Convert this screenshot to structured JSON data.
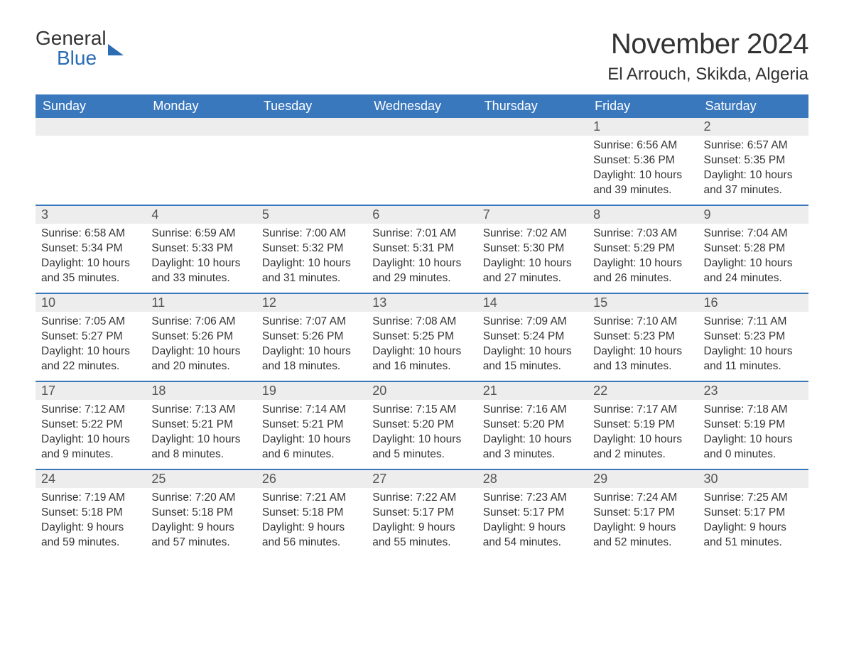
{
  "brand": {
    "general": "General",
    "blue": "Blue"
  },
  "title": "November 2024",
  "location": "El Arrouch, Skikda, Algeria",
  "colors": {
    "header_bg": "#3a78bd",
    "header_text": "#ffffff",
    "date_bar_bg": "#ededed",
    "date_text": "#555555",
    "body_text": "#333333",
    "brand_blue": "#2a6db5",
    "row_border": "#3a78bd",
    "page_bg": "#ffffff"
  },
  "day_names": [
    "Sunday",
    "Monday",
    "Tuesday",
    "Wednesday",
    "Thursday",
    "Friday",
    "Saturday"
  ],
  "weeks": [
    [
      {
        "date": "",
        "sunrise": "",
        "sunset": "",
        "daylight": ""
      },
      {
        "date": "",
        "sunrise": "",
        "sunset": "",
        "daylight": ""
      },
      {
        "date": "",
        "sunrise": "",
        "sunset": "",
        "daylight": ""
      },
      {
        "date": "",
        "sunrise": "",
        "sunset": "",
        "daylight": ""
      },
      {
        "date": "",
        "sunrise": "",
        "sunset": "",
        "daylight": ""
      },
      {
        "date": "1",
        "sunrise": "Sunrise: 6:56 AM",
        "sunset": "Sunset: 5:36 PM",
        "daylight": "Daylight: 10 hours and 39 minutes."
      },
      {
        "date": "2",
        "sunrise": "Sunrise: 6:57 AM",
        "sunset": "Sunset: 5:35 PM",
        "daylight": "Daylight: 10 hours and 37 minutes."
      }
    ],
    [
      {
        "date": "3",
        "sunrise": "Sunrise: 6:58 AM",
        "sunset": "Sunset: 5:34 PM",
        "daylight": "Daylight: 10 hours and 35 minutes."
      },
      {
        "date": "4",
        "sunrise": "Sunrise: 6:59 AM",
        "sunset": "Sunset: 5:33 PM",
        "daylight": "Daylight: 10 hours and 33 minutes."
      },
      {
        "date": "5",
        "sunrise": "Sunrise: 7:00 AM",
        "sunset": "Sunset: 5:32 PM",
        "daylight": "Daylight: 10 hours and 31 minutes."
      },
      {
        "date": "6",
        "sunrise": "Sunrise: 7:01 AM",
        "sunset": "Sunset: 5:31 PM",
        "daylight": "Daylight: 10 hours and 29 minutes."
      },
      {
        "date": "7",
        "sunrise": "Sunrise: 7:02 AM",
        "sunset": "Sunset: 5:30 PM",
        "daylight": "Daylight: 10 hours and 27 minutes."
      },
      {
        "date": "8",
        "sunrise": "Sunrise: 7:03 AM",
        "sunset": "Sunset: 5:29 PM",
        "daylight": "Daylight: 10 hours and 26 minutes."
      },
      {
        "date": "9",
        "sunrise": "Sunrise: 7:04 AM",
        "sunset": "Sunset: 5:28 PM",
        "daylight": "Daylight: 10 hours and 24 minutes."
      }
    ],
    [
      {
        "date": "10",
        "sunrise": "Sunrise: 7:05 AM",
        "sunset": "Sunset: 5:27 PM",
        "daylight": "Daylight: 10 hours and 22 minutes."
      },
      {
        "date": "11",
        "sunrise": "Sunrise: 7:06 AM",
        "sunset": "Sunset: 5:26 PM",
        "daylight": "Daylight: 10 hours and 20 minutes."
      },
      {
        "date": "12",
        "sunrise": "Sunrise: 7:07 AM",
        "sunset": "Sunset: 5:26 PM",
        "daylight": "Daylight: 10 hours and 18 minutes."
      },
      {
        "date": "13",
        "sunrise": "Sunrise: 7:08 AM",
        "sunset": "Sunset: 5:25 PM",
        "daylight": "Daylight: 10 hours and 16 minutes."
      },
      {
        "date": "14",
        "sunrise": "Sunrise: 7:09 AM",
        "sunset": "Sunset: 5:24 PM",
        "daylight": "Daylight: 10 hours and 15 minutes."
      },
      {
        "date": "15",
        "sunrise": "Sunrise: 7:10 AM",
        "sunset": "Sunset: 5:23 PM",
        "daylight": "Daylight: 10 hours and 13 minutes."
      },
      {
        "date": "16",
        "sunrise": "Sunrise: 7:11 AM",
        "sunset": "Sunset: 5:23 PM",
        "daylight": "Daylight: 10 hours and 11 minutes."
      }
    ],
    [
      {
        "date": "17",
        "sunrise": "Sunrise: 7:12 AM",
        "sunset": "Sunset: 5:22 PM",
        "daylight": "Daylight: 10 hours and 9 minutes."
      },
      {
        "date": "18",
        "sunrise": "Sunrise: 7:13 AM",
        "sunset": "Sunset: 5:21 PM",
        "daylight": "Daylight: 10 hours and 8 minutes."
      },
      {
        "date": "19",
        "sunrise": "Sunrise: 7:14 AM",
        "sunset": "Sunset: 5:21 PM",
        "daylight": "Daylight: 10 hours and 6 minutes."
      },
      {
        "date": "20",
        "sunrise": "Sunrise: 7:15 AM",
        "sunset": "Sunset: 5:20 PM",
        "daylight": "Daylight: 10 hours and 5 minutes."
      },
      {
        "date": "21",
        "sunrise": "Sunrise: 7:16 AM",
        "sunset": "Sunset: 5:20 PM",
        "daylight": "Daylight: 10 hours and 3 minutes."
      },
      {
        "date": "22",
        "sunrise": "Sunrise: 7:17 AM",
        "sunset": "Sunset: 5:19 PM",
        "daylight": "Daylight: 10 hours and 2 minutes."
      },
      {
        "date": "23",
        "sunrise": "Sunrise: 7:18 AM",
        "sunset": "Sunset: 5:19 PM",
        "daylight": "Daylight: 10 hours and 0 minutes."
      }
    ],
    [
      {
        "date": "24",
        "sunrise": "Sunrise: 7:19 AM",
        "sunset": "Sunset: 5:18 PM",
        "daylight": "Daylight: 9 hours and 59 minutes."
      },
      {
        "date": "25",
        "sunrise": "Sunrise: 7:20 AM",
        "sunset": "Sunset: 5:18 PM",
        "daylight": "Daylight: 9 hours and 57 minutes."
      },
      {
        "date": "26",
        "sunrise": "Sunrise: 7:21 AM",
        "sunset": "Sunset: 5:18 PM",
        "daylight": "Daylight: 9 hours and 56 minutes."
      },
      {
        "date": "27",
        "sunrise": "Sunrise: 7:22 AM",
        "sunset": "Sunset: 5:17 PM",
        "daylight": "Daylight: 9 hours and 55 minutes."
      },
      {
        "date": "28",
        "sunrise": "Sunrise: 7:23 AM",
        "sunset": "Sunset: 5:17 PM",
        "daylight": "Daylight: 9 hours and 54 minutes."
      },
      {
        "date": "29",
        "sunrise": "Sunrise: 7:24 AM",
        "sunset": "Sunset: 5:17 PM",
        "daylight": "Daylight: 9 hours and 52 minutes."
      },
      {
        "date": "30",
        "sunrise": "Sunrise: 7:25 AM",
        "sunset": "Sunset: 5:17 PM",
        "daylight": "Daylight: 9 hours and 51 minutes."
      }
    ]
  ]
}
